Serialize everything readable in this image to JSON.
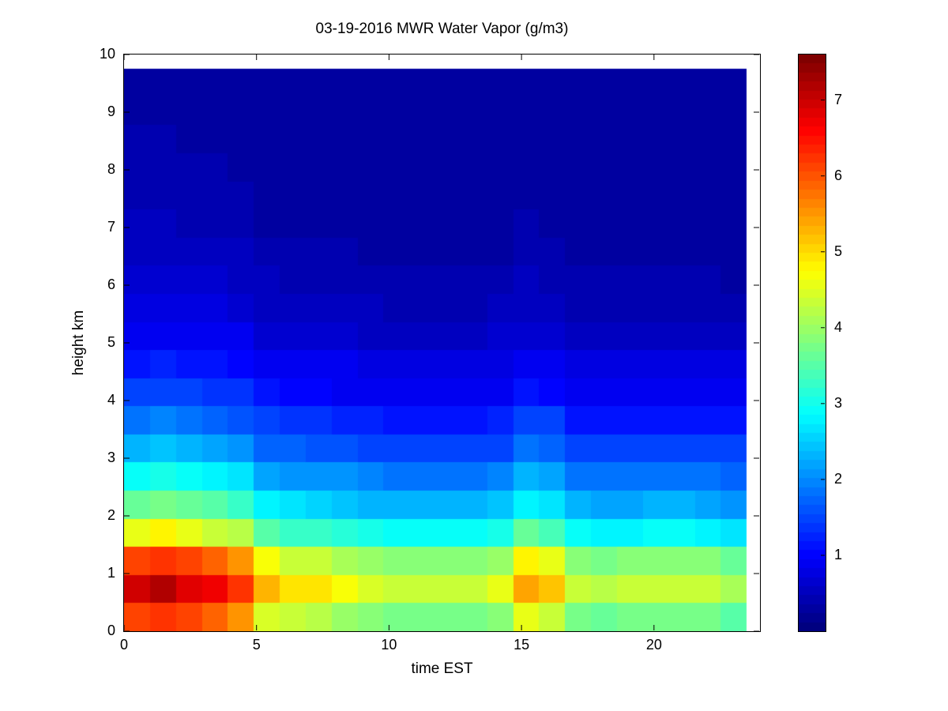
{
  "chart_data": {
    "type": "heatmap",
    "title": "03-19-2016 MWR Water Vapor (g/m3)",
    "xlabel": "time EST",
    "ylabel": "height km",
    "colormap": "jet",
    "xlim": [
      0,
      24
    ],
    "ylim": [
      0,
      10
    ],
    "x_ticks": [
      0,
      5,
      10,
      15,
      20
    ],
    "y_ticks": [
      0,
      1,
      2,
      3,
      4,
      5,
      6,
      7,
      8,
      9,
      10
    ],
    "colorbar_ticks": [
      1,
      2,
      3,
      4,
      5,
      6,
      7
    ],
    "clim": [
      0,
      7.6
    ],
    "x_extent": [
      0,
      23.5
    ],
    "y_extent": [
      0,
      9.75
    ],
    "times": [
      0,
      1,
      2,
      3,
      4,
      5,
      6,
      7,
      8,
      9,
      10,
      11,
      12,
      13,
      14,
      15,
      16,
      17,
      18,
      19,
      20,
      21,
      22,
      23
    ],
    "heights": [
      0.24,
      0.73,
      1.22,
      1.71,
      2.19,
      2.68,
      3.17,
      3.66,
      4.14,
      4.63,
      5.12,
      5.61,
      6.09,
      6.58,
      7.07,
      7.56,
      8.04,
      8.53,
      9.02,
      9.51
    ],
    "rows_bottom_to_top": true,
    "values": [
      [
        6.2,
        6.3,
        6.1,
        5.9,
        5.6,
        4.5,
        4.3,
        4.2,
        4.0,
        3.8,
        3.7,
        3.7,
        3.7,
        3.7,
        3.9,
        4.6,
        4.4,
        3.7,
        3.6,
        3.7,
        3.7,
        3.7,
        3.7,
        3.5
      ],
      [
        7.0,
        7.2,
        6.9,
        6.7,
        6.3,
        5.3,
        5.0,
        4.9,
        4.7,
        4.5,
        4.4,
        4.4,
        4.4,
        4.4,
        4.6,
        5.4,
        5.2,
        4.4,
        4.2,
        4.3,
        4.4,
        4.4,
        4.3,
        4.1
      ],
      [
        6.2,
        6.3,
        6.1,
        5.9,
        5.5,
        4.7,
        4.4,
        4.3,
        4.1,
        4.0,
        3.9,
        3.9,
        3.9,
        3.9,
        4.0,
        4.8,
        4.6,
        3.9,
        3.7,
        3.8,
        3.9,
        3.9,
        3.8,
        3.6
      ],
      [
        4.6,
        4.8,
        4.6,
        4.4,
        4.2,
        3.5,
        3.3,
        3.2,
        3.1,
        3.0,
        2.9,
        2.9,
        2.9,
        2.9,
        3.0,
        3.6,
        3.4,
        2.9,
        2.8,
        2.8,
        2.9,
        2.9,
        2.8,
        2.7
      ],
      [
        3.6,
        3.7,
        3.6,
        3.5,
        3.3,
        2.8,
        2.6,
        2.5,
        2.4,
        2.3,
        2.3,
        2.3,
        2.3,
        2.3,
        2.4,
        2.8,
        2.7,
        2.3,
        2.2,
        2.2,
        2.3,
        2.3,
        2.2,
        2.1
      ],
      [
        2.9,
        3.0,
        2.9,
        2.8,
        2.6,
        2.2,
        2.1,
        2.1,
        2.0,
        1.9,
        1.8,
        1.8,
        1.8,
        1.8,
        1.9,
        2.3,
        2.2,
        1.8,
        1.8,
        1.8,
        1.8,
        1.8,
        1.8,
        1.7
      ],
      [
        2.3,
        2.4,
        2.3,
        2.2,
        2.1,
        1.7,
        1.7,
        1.6,
        1.6,
        1.5,
        1.5,
        1.5,
        1.5,
        1.5,
        1.5,
        1.8,
        1.7,
        1.5,
        1.4,
        1.4,
        1.5,
        1.5,
        1.4,
        1.4
      ],
      [
        1.8,
        1.9,
        1.8,
        1.7,
        1.6,
        1.4,
        1.3,
        1.3,
        1.2,
        1.2,
        1.1,
        1.1,
        1.1,
        1.1,
        1.2,
        1.4,
        1.4,
        1.1,
        1.1,
        1.1,
        1.1,
        1.1,
        1.1,
        1.1
      ],
      [
        1.4,
        1.4,
        1.4,
        1.3,
        1.3,
        1.1,
        1.0,
        1.0,
        0.9,
        0.9,
        0.9,
        0.9,
        0.9,
        0.9,
        0.9,
        1.1,
        1.0,
        0.9,
        0.8,
        0.9,
        0.9,
        0.9,
        0.9,
        0.8
      ],
      [
        1.1,
        1.2,
        1.1,
        1.1,
        1.0,
        0.8,
        0.8,
        0.8,
        0.8,
        0.7,
        0.7,
        0.7,
        0.7,
        0.7,
        0.7,
        0.9,
        0.8,
        0.7,
        0.7,
        0.7,
        0.7,
        0.7,
        0.7,
        0.7
      ],
      [
        0.8,
        0.9,
        0.8,
        0.8,
        0.8,
        0.6,
        0.6,
        0.6,
        0.6,
        0.5,
        0.5,
        0.5,
        0.5,
        0.5,
        0.6,
        0.6,
        0.6,
        0.5,
        0.5,
        0.5,
        0.5,
        0.5,
        0.5,
        0.5
      ],
      [
        0.7,
        0.7,
        0.7,
        0.7,
        0.6,
        0.5,
        0.5,
        0.5,
        0.5,
        0.5,
        0.4,
        0.4,
        0.4,
        0.4,
        0.5,
        0.5,
        0.5,
        0.4,
        0.4,
        0.4,
        0.4,
        0.4,
        0.4,
        0.4
      ],
      [
        0.6,
        0.6,
        0.6,
        0.6,
        0.5,
        0.5,
        0.4,
        0.4,
        0.4,
        0.4,
        0.4,
        0.4,
        0.4,
        0.4,
        0.4,
        0.5,
        0.4,
        0.4,
        0.4,
        0.4,
        0.4,
        0.4,
        0.4,
        0.3
      ],
      [
        0.5,
        0.5,
        0.5,
        0.5,
        0.5,
        0.4,
        0.4,
        0.4,
        0.4,
        0.3,
        0.3,
        0.3,
        0.3,
        0.3,
        0.3,
        0.4,
        0.4,
        0.3,
        0.3,
        0.3,
        0.3,
        0.3,
        0.3,
        0.3
      ],
      [
        0.5,
        0.5,
        0.4,
        0.4,
        0.4,
        0.3,
        0.3,
        0.3,
        0.3,
        0.3,
        0.3,
        0.3,
        0.3,
        0.3,
        0.3,
        0.4,
        0.3,
        0.3,
        0.3,
        0.3,
        0.3,
        0.3,
        0.3,
        0.3
      ],
      [
        0.4,
        0.4,
        0.4,
        0.4,
        0.4,
        0.3,
        0.3,
        0.3,
        0.3,
        0.3,
        0.3,
        0.3,
        0.3,
        0.3,
        0.3,
        0.3,
        0.3,
        0.3,
        0.3,
        0.3,
        0.3,
        0.3,
        0.3,
        0.2
      ],
      [
        0.4,
        0.4,
        0.4,
        0.4,
        0.3,
        0.3,
        0.3,
        0.3,
        0.3,
        0.2,
        0.2,
        0.2,
        0.2,
        0.2,
        0.3,
        0.3,
        0.3,
        0.2,
        0.2,
        0.2,
        0.2,
        0.2,
        0.2,
        0.2
      ],
      [
        0.4,
        0.4,
        0.3,
        0.3,
        0.3,
        0.3,
        0.3,
        0.2,
        0.2,
        0.2,
        0.2,
        0.2,
        0.2,
        0.2,
        0.2,
        0.3,
        0.3,
        0.2,
        0.2,
        0.2,
        0.2,
        0.2,
        0.2,
        0.2
      ],
      [
        0.3,
        0.3,
        0.3,
        0.3,
        0.3,
        0.2,
        0.2,
        0.2,
        0.2,
        0.2,
        0.2,
        0.2,
        0.2,
        0.2,
        0.2,
        0.2,
        0.2,
        0.2,
        0.2,
        0.2,
        0.2,
        0.2,
        0.2,
        0.2
      ],
      [
        0.3,
        0.3,
        0.3,
        0.3,
        0.3,
        0.2,
        0.2,
        0.2,
        0.2,
        0.2,
        0.2,
        0.2,
        0.2,
        0.2,
        0.2,
        0.2,
        0.2,
        0.2,
        0.2,
        0.2,
        0.2,
        0.2,
        0.2,
        0.2
      ]
    ]
  }
}
